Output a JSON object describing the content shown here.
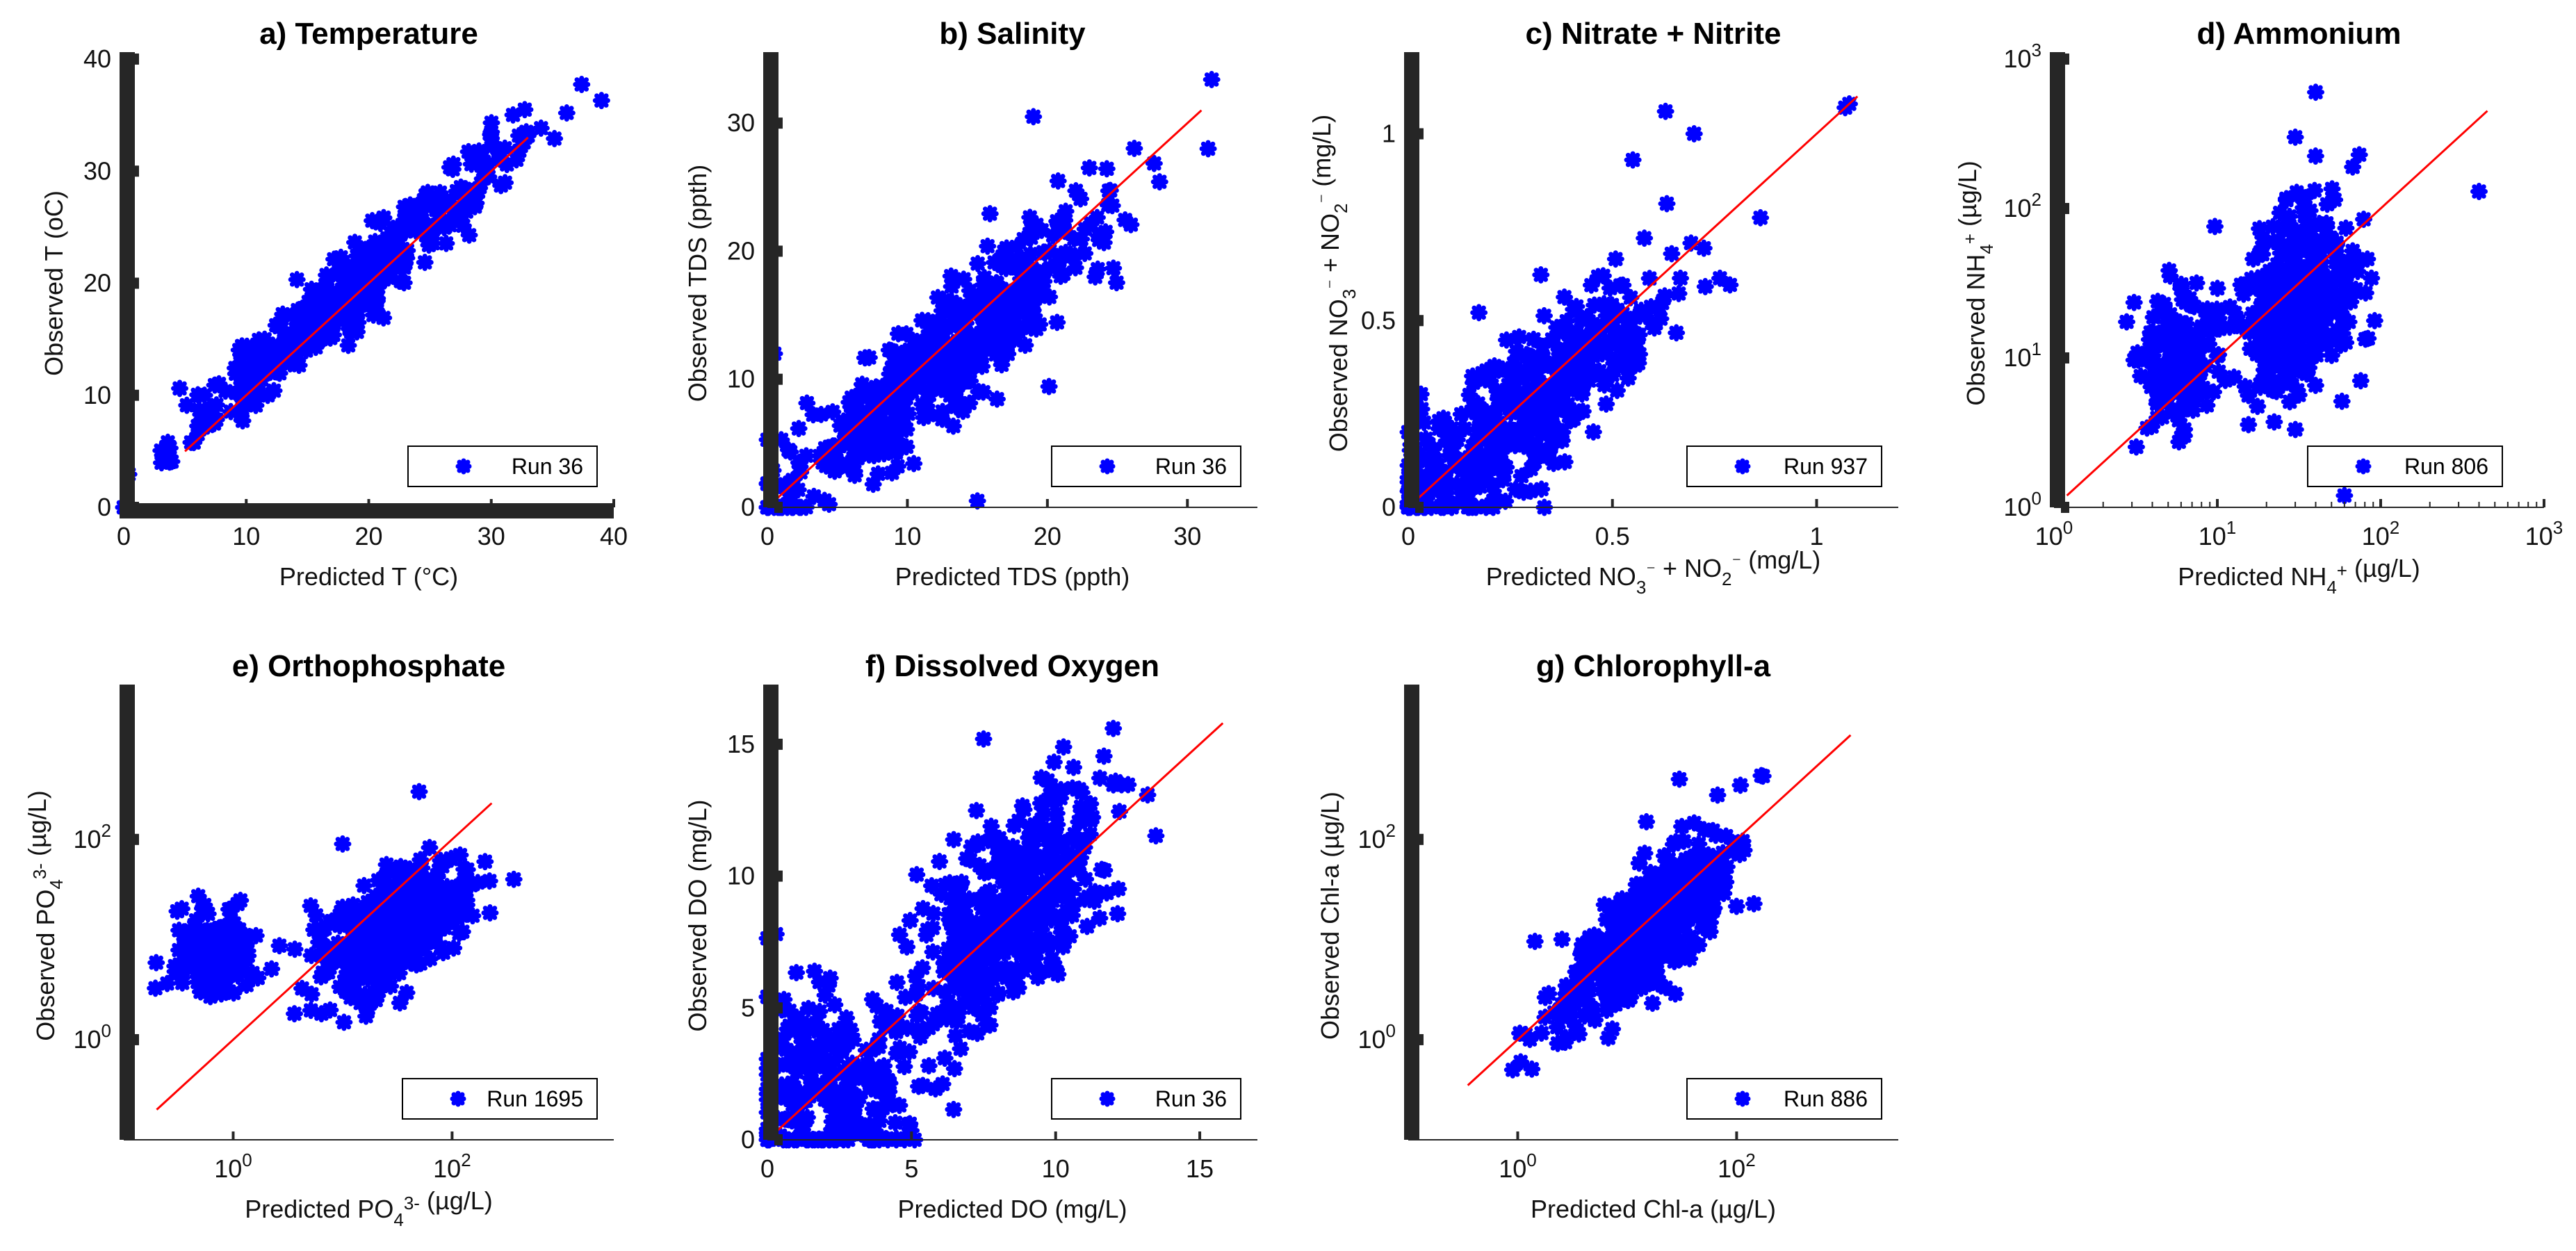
{
  "figure": {
    "marker_color": "#0000ff",
    "line_color": "#ff0000",
    "axis_color": "#262626"
  },
  "chart_data": [
    {
      "id": "a",
      "type": "scatter",
      "scale": "linear",
      "title": "a) Temperature",
      "xlabel": "Predicted T (°C)",
      "ylabel": "Observed T (oC)",
      "xlim": [
        0,
        40
      ],
      "ylim": [
        0,
        40
      ],
      "xticks": [
        0,
        10,
        20,
        30,
        40
      ],
      "yticks": [
        0,
        10,
        20,
        30,
        40
      ],
      "xticklabels": [
        "0",
        "10",
        "20",
        "30",
        "40"
      ],
      "yticklabels": [
        "0",
        "10",
        "20",
        "30",
        "40"
      ],
      "legend": "Run 36",
      "legend_loc": "bottom-right",
      "identity_line": [
        5,
        33
      ],
      "cloud": [
        {
          "cx": 18,
          "cy": 19,
          "sx": 7,
          "sy": 7,
          "rho": 0.97,
          "n": 420
        }
      ],
      "points": [
        {
          "x": 5.5,
          "y": 5.8
        },
        {
          "x": 30,
          "y": 33.5
        },
        {
          "x": 29,
          "y": 31.8
        }
      ]
    },
    {
      "id": "b",
      "type": "scatter",
      "scale": "linear",
      "title": "b) Salinity",
      "xlabel": "Predicted TDS (ppth)",
      "ylabel": "Observed TDS (ppth)",
      "xlim": [
        0,
        35
      ],
      "ylim": [
        0,
        35
      ],
      "xticks": [
        0,
        10,
        20,
        30
      ],
      "yticks": [
        0,
        10,
        20,
        30
      ],
      "xticklabels": [
        "0",
        "10",
        "20",
        "30"
      ],
      "yticklabels": [
        "0",
        "10",
        "20",
        "30"
      ],
      "legend": "Run 36",
      "legend_loc": "bottom-right",
      "identity_line": [
        0,
        31
      ],
      "cloud": [
        {
          "cx": 12,
          "cy": 11,
          "sx": 6.5,
          "sy": 6.5,
          "rho": 0.92,
          "n": 520
        }
      ],
      "points": [
        {
          "x": 19,
          "y": 30.5
        },
        {
          "x": 15,
          "y": 0.5
        },
        {
          "x": 0.5,
          "y": 12
        },
        {
          "x": 23,
          "y": 26.5
        }
      ]
    },
    {
      "id": "c",
      "type": "scatter",
      "scale": "linear",
      "title": "c) Nitrate + Nitrite",
      "xlabel": "Predicted NO3⁻ + NO2⁻ (mg/L)",
      "ylabel": "Observed NO3⁻ + NO2⁻ (mg/L)",
      "xlim": [
        0,
        1.2
      ],
      "ylim": [
        0,
        1.2
      ],
      "xticks": [
        0,
        0.5,
        1
      ],
      "yticks": [
        0,
        0.5,
        1
      ],
      "xticklabels": [
        "0",
        "0.5",
        "1"
      ],
      "yticklabels": [
        "0",
        "0.5",
        "1"
      ],
      "legend": "Run 937",
      "legend_loc": "bottom-right",
      "identity_line": [
        0,
        1.1
      ],
      "cloud": [
        {
          "cx": 0.28,
          "cy": 0.26,
          "sx": 0.2,
          "sy": 0.2,
          "rho": 0.86,
          "n": 470
        }
      ],
      "points": [
        {
          "x": 1.08,
          "y": 1.08
        },
        {
          "x": 1.07,
          "y": 1.07
        },
        {
          "x": 0.63,
          "y": 1.06
        },
        {
          "x": 0.7,
          "y": 1.0
        },
        {
          "x": 0.55,
          "y": 0.93
        }
      ]
    },
    {
      "id": "d",
      "type": "scatter",
      "scale": "log",
      "title": "d) Ammonium",
      "xlabel": "Predicted NH4+ (µg/L)",
      "ylabel": "Observed NH4+ (µg/L)",
      "xlim": [
        1,
        1000
      ],
      "ylim": [
        1,
        1000
      ],
      "xticks": [
        1,
        10,
        100,
        1000
      ],
      "yticks": [
        1,
        10,
        100,
        1000
      ],
      "xticklabels": [
        "10^0",
        "10^1",
        "10^2",
        "10^3"
      ],
      "yticklabels": [
        "10^0",
        "10^1",
        "10^2",
        "10^3"
      ],
      "legend": "Run 806",
      "legend_loc": "bottom-right",
      "identity_line": [
        1.2,
        450
      ],
      "cloud": [
        {
          "cx": 1.5,
          "cy": 1.4,
          "sx": 0.18,
          "sy": 0.35,
          "rho": 0.25,
          "n": 380
        },
        {
          "cx": 0.75,
          "cy": 1.0,
          "sx": 0.13,
          "sy": 0.25,
          "rho": 0.0,
          "n": 180
        }
      ],
      "points": [
        {
          "x": 40,
          "y": 600
        },
        {
          "x": 60,
          "y": 1.2
        },
        {
          "x": 400,
          "y": 130
        },
        {
          "x": 30,
          "y": 300
        }
      ]
    },
    {
      "id": "e",
      "type": "scatter",
      "scale": "log",
      "title": "e) Orthophosphate",
      "xlabel": "Predicted PO4 3- (µg/L)",
      "ylabel": "Observed PO4 3- (µg/L)",
      "xlim": [
        0.1,
        3000
      ],
      "ylim": [
        0.1,
        3000
      ],
      "xticks": [
        1,
        100
      ],
      "yticks": [
        1,
        100
      ],
      "xticklabels": [
        "10^0",
        "10^2"
      ],
      "yticklabels": [
        "10^0",
        "10^2"
      ],
      "legend": "Run 1695",
      "legend_loc": "bottom-right",
      "identity_line": [
        0.2,
        230
      ],
      "cloud": [
        {
          "cx": 1.45,
          "cy": 1.1,
          "sx": 0.33,
          "sy": 0.33,
          "rho": 0.55,
          "n": 420
        },
        {
          "cx": -0.2,
          "cy": 0.9,
          "sx": 0.18,
          "sy": 0.22,
          "rho": 0.0,
          "n": 170
        }
      ],
      "points": [
        {
          "x": 50,
          "y": 300
        },
        {
          "x": 200,
          "y": 60
        },
        {
          "x": 10,
          "y": 90
        }
      ]
    },
    {
      "id": "f",
      "type": "scatter",
      "scale": "linear",
      "title": "f) Dissolved Oxygen",
      "xlabel": "Predicted DO (mg/L)",
      "ylabel": "Observed DO (mg/L)",
      "xlim": [
        0,
        17
      ],
      "ylim": [
        0,
        17
      ],
      "xticks": [
        0,
        5,
        10,
        15
      ],
      "yticks": [
        0,
        5,
        10,
        15
      ],
      "xticklabels": [
        "0",
        "5",
        "10",
        "15"
      ],
      "yticklabels": [
        "0",
        "5",
        "10",
        "15"
      ],
      "legend": "Run 36",
      "legend_loc": "bottom-right",
      "identity_line": [
        0,
        15.8
      ],
      "cloud": [
        {
          "cx": 8.4,
          "cy": 8.6,
          "sx": 1.6,
          "sy": 2.3,
          "rho": 0.55,
          "n": 480
        },
        {
          "cx": 2.2,
          "cy": 2.0,
          "sx": 1.6,
          "sy": 1.8,
          "rho": 0.0,
          "n": 260
        }
      ],
      "points": [
        {
          "x": 12,
          "y": 15.6
        },
        {
          "x": 7.5,
          "y": 15.2
        },
        {
          "x": 0.3,
          "y": 7.8
        }
      ]
    },
    {
      "id": "g",
      "type": "scatter",
      "scale": "log",
      "title": "g) Chlorophyll-a",
      "xlabel": "Predicted Chl-a (µg/L)",
      "ylabel": "Observed Chl-a (µg/L)",
      "xlim": [
        0.1,
        3000
      ],
      "ylim": [
        0.1,
        3000
      ],
      "xticks": [
        1,
        100
      ],
      "yticks": [
        1,
        100
      ],
      "xticklabels": [
        "10^0",
        "10^2"
      ],
      "yticklabels": [
        "10^0",
        "10^2"
      ],
      "legend": "Run 886",
      "legend_loc": "bottom-right",
      "identity_line": [
        0.35,
        1100
      ],
      "cloud": [
        {
          "cx": 1.2,
          "cy": 1.1,
          "sx": 0.4,
          "sy": 0.48,
          "rho": 0.8,
          "n": 560
        }
      ],
      "points": [
        {
          "x": 30,
          "y": 400
        },
        {
          "x": 15,
          "y": 150
        },
        {
          "x": 0.9,
          "y": 0.5
        }
      ]
    }
  ]
}
